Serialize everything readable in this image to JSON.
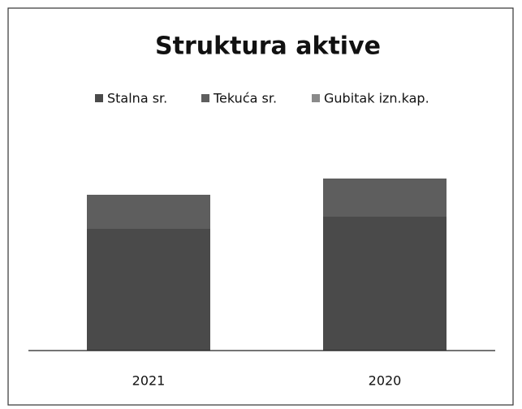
{
  "chart_data": {
    "type": "stacked_bar",
    "title": "Struktura aktive",
    "categories": [
      "2021",
      "2020"
    ],
    "series": [
      {
        "name": "Stalna sr.",
        "color": "#4a4a4a",
        "values": [
          150,
          165
        ]
      },
      {
        "name": "Tekuća sr.",
        "color": "#5e5e5e",
        "values": [
          42,
          47
        ]
      },
      {
        "name": "Gubitak izn.kap.",
        "color": "#8a8a8a",
        "values": [
          0,
          0
        ]
      }
    ],
    "ylim": [
      0,
      250
    ]
  }
}
